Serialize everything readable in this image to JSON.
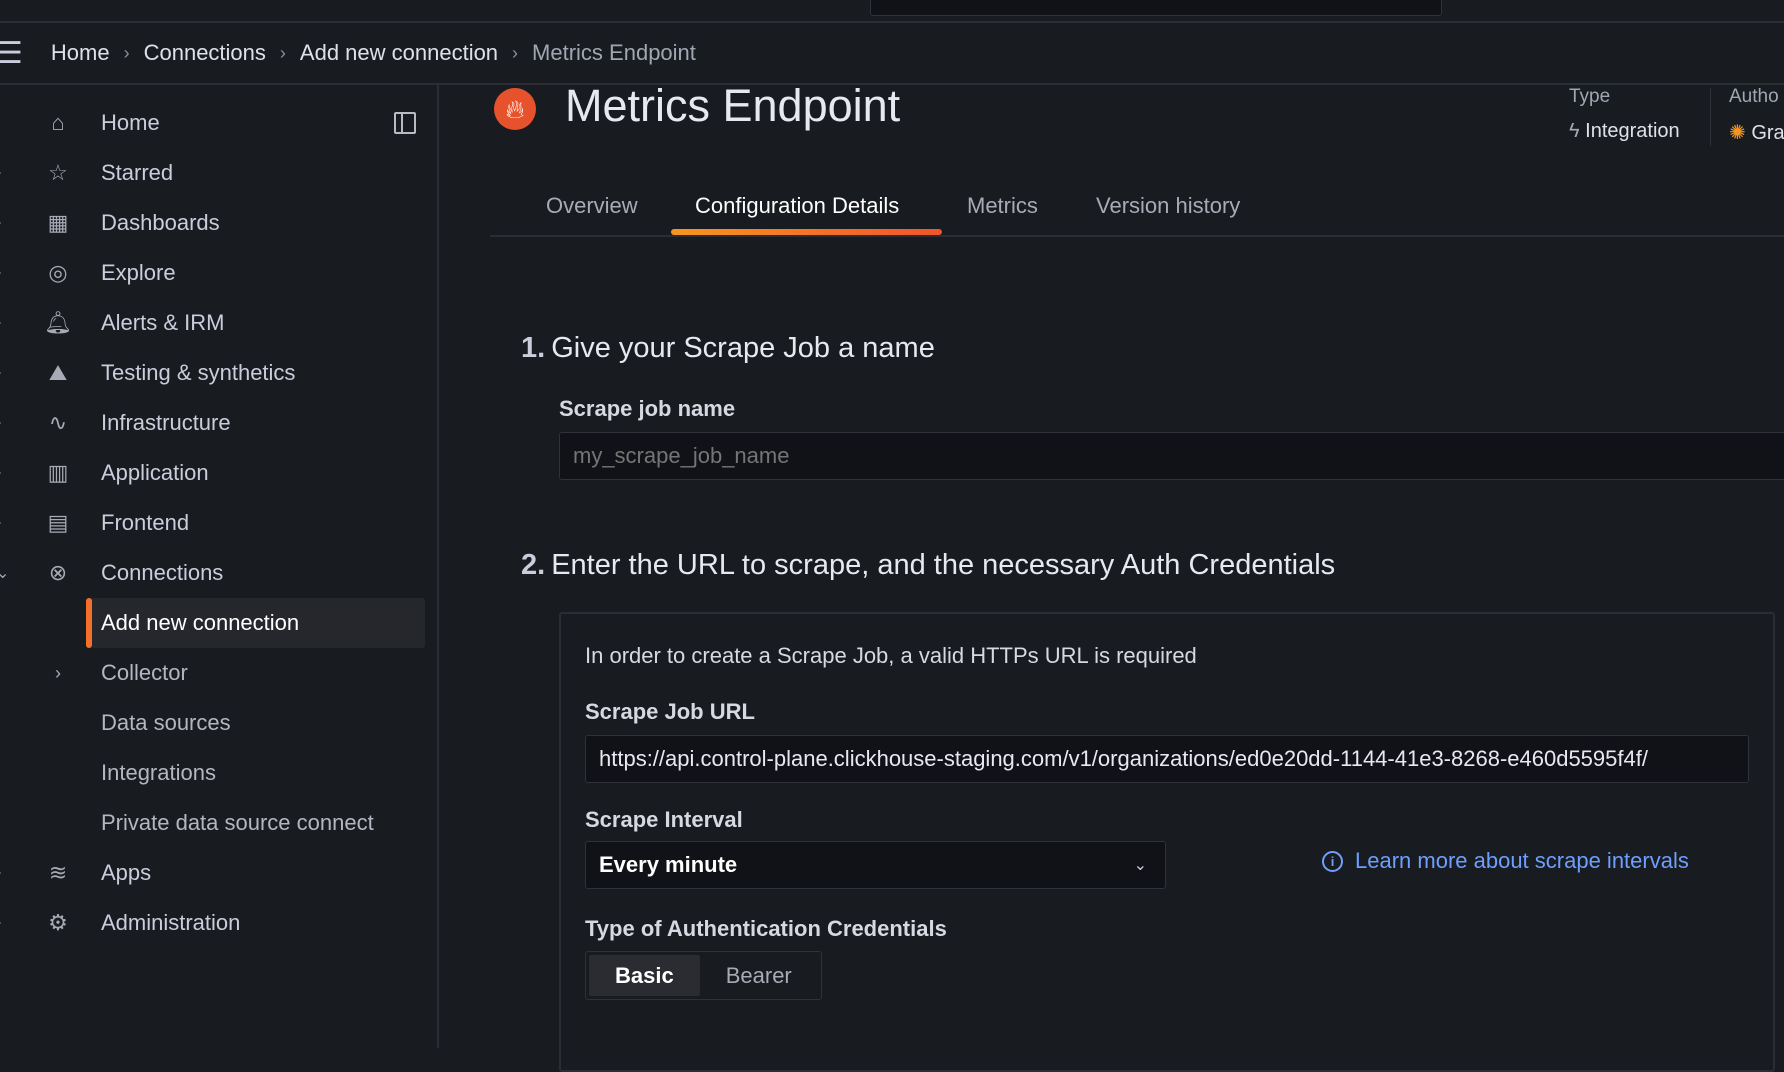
{
  "breadcrumb": [
    "Home",
    "Connections",
    "Add new connection",
    "Metrics Endpoint"
  ],
  "sidebar": {
    "items": [
      {
        "label": "Home",
        "icon": "home-icon",
        "glyph": "⌂",
        "chev": ""
      },
      {
        "label": "Starred",
        "icon": "star-icon",
        "glyph": "☆",
        "chev": "›"
      },
      {
        "label": "Dashboards",
        "icon": "dashboards-icon",
        "glyph": "▦",
        "chev": "›"
      },
      {
        "label": "Explore",
        "icon": "compass-icon",
        "glyph": "◎",
        "chev": "›"
      },
      {
        "label": "Alerts & IRM",
        "icon": "bell-icon",
        "glyph": "🔔︎",
        "chev": "›"
      },
      {
        "label": "Testing & synthetics",
        "icon": "synthetics-icon",
        "glyph": "⛰︎",
        "chev": "›"
      },
      {
        "label": "Infrastructure",
        "icon": "heartbeat-icon",
        "glyph": "∿",
        "chev": "›"
      },
      {
        "label": "Application",
        "icon": "bar-chart-icon",
        "glyph": "▥",
        "chev": "›"
      },
      {
        "label": "Frontend",
        "icon": "frontend-icon",
        "glyph": "▤",
        "chev": "›"
      },
      {
        "label": "Connections",
        "icon": "connections-icon",
        "glyph": "⊗",
        "chev": "⌄"
      },
      {
        "label": "Add new connection",
        "sub": true,
        "active": true
      },
      {
        "label": "Collector",
        "sub": true,
        "chev2": "›"
      },
      {
        "label": "Data sources",
        "sub": true
      },
      {
        "label": "Integrations",
        "sub": true
      },
      {
        "label": "Private data source connect",
        "sub": true
      },
      {
        "label": "Apps",
        "icon": "layers-icon",
        "glyph": "≋",
        "chev": "›"
      },
      {
        "label": "Administration",
        "icon": "gear-icon",
        "glyph": "⚙",
        "chev": "›"
      }
    ]
  },
  "header": {
    "title": "Metrics Endpoint",
    "type_label": "Type",
    "type_value": "Integration",
    "author_label": "Autho",
    "author_value": "Gra"
  },
  "tabs": [
    {
      "label": "Overview"
    },
    {
      "label": "Configuration Details",
      "active": true
    },
    {
      "label": "Metrics"
    },
    {
      "label": "Version history"
    }
  ],
  "step1": {
    "num": "1.",
    "title": "Give your Scrape Job a name",
    "field_label": "Scrape job name",
    "placeholder": "my_scrape_job_name"
  },
  "step2": {
    "num": "2.",
    "title": "Enter the URL to scrape, and the necessary Auth Credentials",
    "info": "In order to create a Scrape Job, a valid HTTPs URL is required",
    "url_label": "Scrape Job URL",
    "url_value": "https://api.control-plane.clickhouse-staging.com/v1/organizations/ed0e20dd-1144-41e3-8268-e460d5595f4f/",
    "interval_label": "Scrape Interval",
    "interval_value": "Every minute",
    "learn_more": "Learn more about scrape intervals",
    "auth_label": "Type of Authentication Credentials",
    "auth_options": [
      "Basic",
      "Bearer"
    ],
    "auth_selected": "Basic"
  },
  "colors": {
    "accent": "#f36f2c",
    "link": "#6e9fff",
    "background": "#181b1f"
  }
}
